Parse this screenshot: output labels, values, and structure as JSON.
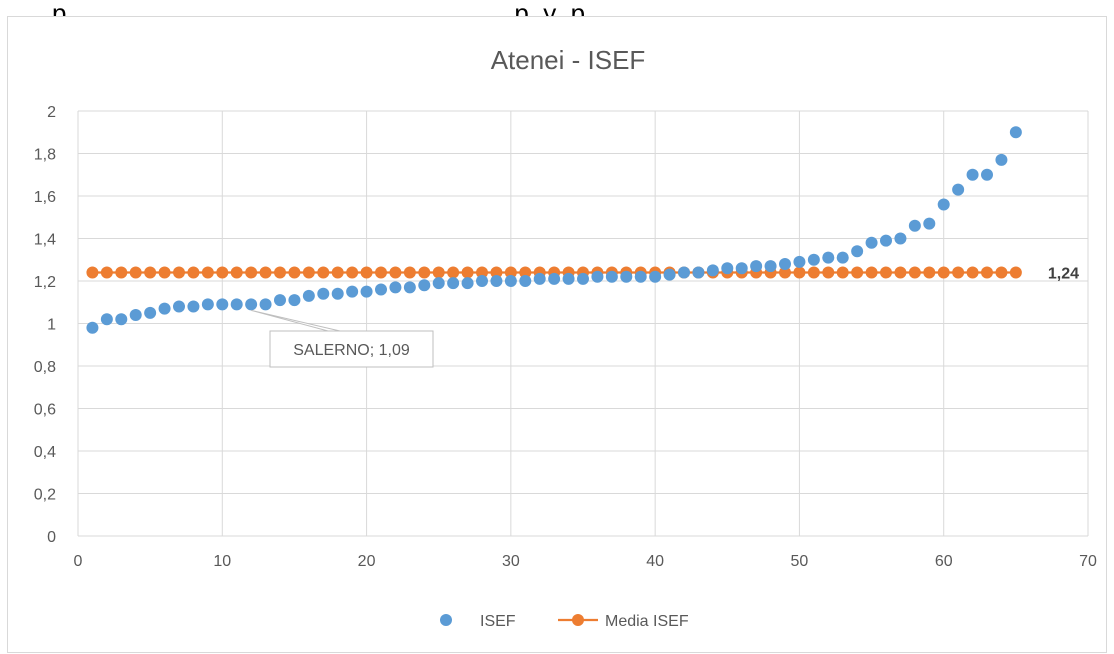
{
  "top_strip_text": "p                                                              p  y  p",
  "chart_data": {
    "type": "scatter",
    "title": "Atenei - ISEF",
    "xlim": [
      0,
      70
    ],
    "ylim": [
      0,
      2
    ],
    "x_ticks": [
      "0",
      "10",
      "20",
      "30",
      "40",
      "50",
      "60",
      "70"
    ],
    "y_ticks": [
      "0",
      "0,2",
      "0,4",
      "0,6",
      "0,8",
      "1",
      "1,2",
      "1,4",
      "1,6",
      "1,8",
      "2"
    ],
    "grid": true,
    "legend_position": "bottom",
    "colors": {
      "isef": "#5b9bd5",
      "media": "#ed7d31"
    },
    "series": [
      {
        "name": "ISEF",
        "marker": "circle",
        "x": [
          1,
          2,
          3,
          4,
          5,
          6,
          7,
          8,
          9,
          10,
          11,
          12,
          13,
          14,
          15,
          16,
          17,
          18,
          19,
          20,
          21,
          22,
          23,
          24,
          25,
          26,
          27,
          28,
          29,
          30,
          31,
          32,
          33,
          34,
          35,
          36,
          37,
          38,
          39,
          40,
          41,
          42,
          43,
          44,
          45,
          46,
          47,
          48,
          49,
          50,
          51,
          52,
          53,
          54,
          55,
          56,
          57,
          58,
          59,
          60,
          61,
          62,
          63,
          64,
          65
        ],
        "y": [
          0.98,
          1.02,
          1.02,
          1.04,
          1.05,
          1.07,
          1.08,
          1.08,
          1.09,
          1.09,
          1.09,
          1.09,
          1.09,
          1.11,
          1.11,
          1.13,
          1.14,
          1.14,
          1.15,
          1.15,
          1.16,
          1.17,
          1.17,
          1.18,
          1.19,
          1.19,
          1.19,
          1.2,
          1.2,
          1.2,
          1.2,
          1.21,
          1.21,
          1.21,
          1.21,
          1.22,
          1.22,
          1.22,
          1.22,
          1.22,
          1.23,
          1.24,
          1.24,
          1.25,
          1.26,
          1.26,
          1.27,
          1.27,
          1.28,
          1.29,
          1.3,
          1.31,
          1.31,
          1.34,
          1.38,
          1.39,
          1.4,
          1.46,
          1.47,
          1.56,
          1.63,
          1.7,
          1.7,
          1.77,
          1.9
        ]
      },
      {
        "name": "Media ISEF",
        "marker": "circle-line",
        "x": [
          1,
          2,
          3,
          4,
          5,
          6,
          7,
          8,
          9,
          10,
          11,
          12,
          13,
          14,
          15,
          16,
          17,
          18,
          19,
          20,
          21,
          22,
          23,
          24,
          25,
          26,
          27,
          28,
          29,
          30,
          31,
          32,
          33,
          34,
          35,
          36,
          37,
          38,
          39,
          40,
          41,
          42,
          43,
          44,
          45,
          46,
          47,
          48,
          49,
          50,
          51,
          52,
          53,
          54,
          55,
          56,
          57,
          58,
          59,
          60,
          61,
          62,
          63,
          64,
          65
        ],
        "y": [
          1.24,
          1.24,
          1.24,
          1.24,
          1.24,
          1.24,
          1.24,
          1.24,
          1.24,
          1.24,
          1.24,
          1.24,
          1.24,
          1.24,
          1.24,
          1.24,
          1.24,
          1.24,
          1.24,
          1.24,
          1.24,
          1.24,
          1.24,
          1.24,
          1.24,
          1.24,
          1.24,
          1.24,
          1.24,
          1.24,
          1.24,
          1.24,
          1.24,
          1.24,
          1.24,
          1.24,
          1.24,
          1.24,
          1.24,
          1.24,
          1.24,
          1.24,
          1.24,
          1.24,
          1.24,
          1.24,
          1.24,
          1.24,
          1.24,
          1.24,
          1.24,
          1.24,
          1.24,
          1.24,
          1.24,
          1.24,
          1.24,
          1.24,
          1.24,
          1.24,
          1.24,
          1.24,
          1.24,
          1.24,
          1.24
        ]
      }
    ],
    "annotations": [
      {
        "text": "1,24",
        "x": 65,
        "y": 1.24,
        "series": "Media ISEF"
      },
      {
        "text": "SALERNO; 1,09",
        "x": 12,
        "y": 1.09,
        "series": "ISEF"
      }
    ]
  }
}
